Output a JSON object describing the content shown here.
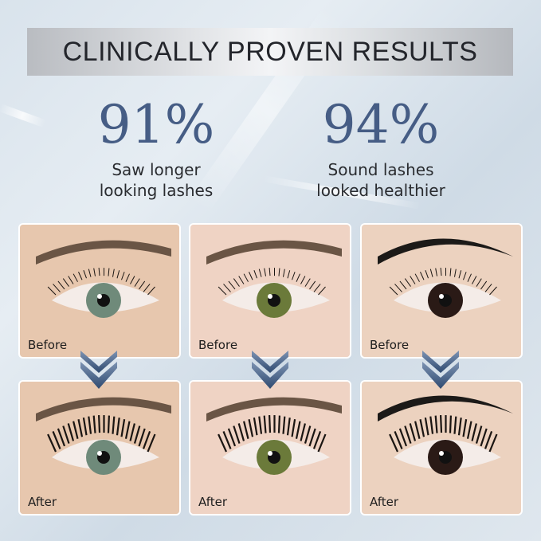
{
  "banner": {
    "title": "CLINICALLY PROVEN RESULTS"
  },
  "stats": [
    {
      "percent": "91%",
      "description": "Saw longer\nlooking lashes"
    },
    {
      "percent": "94%",
      "description": "Sound lashes\nlooked healthier"
    }
  ],
  "photos": {
    "before": [
      {
        "label": "Before"
      },
      {
        "label": "Before"
      },
      {
        "label": "Before"
      }
    ],
    "after": [
      {
        "label": "After"
      },
      {
        "label": "After"
      },
      {
        "label": "After"
      }
    ]
  },
  "colors": {
    "percent": "#465d85",
    "arrow": "#3b5478",
    "iris": [
      "#6f8a7a",
      "#6b7a3a",
      "#2a1a16"
    ]
  }
}
